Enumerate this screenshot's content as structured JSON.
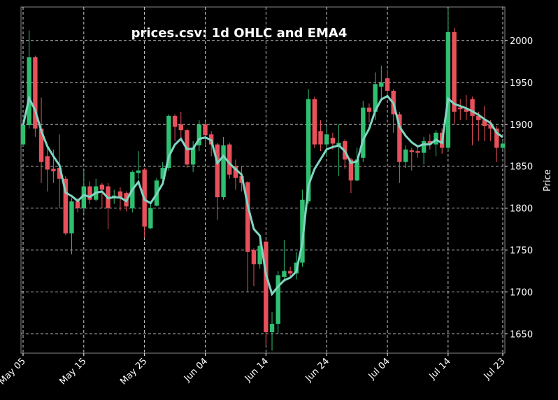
{
  "chart_data": {
    "type": "candlestick",
    "title": "prices.csv: 1d OHLC and EMA4",
    "ylabel": "Price",
    "categories": [
      "May 05",
      null,
      null,
      null,
      null,
      null,
      null,
      null,
      null,
      null,
      "May 15",
      null,
      null,
      null,
      null,
      null,
      null,
      null,
      null,
      null,
      "May 25",
      null,
      null,
      null,
      null,
      null,
      null,
      null,
      null,
      null,
      "Jun 04",
      null,
      null,
      null,
      null,
      null,
      null,
      null,
      null,
      null,
      "Jun 14",
      null,
      null,
      null,
      null,
      null,
      null,
      null,
      null,
      null,
      "Jun 24",
      null,
      null,
      null,
      null,
      null,
      null,
      null,
      null,
      null,
      "Jul 04",
      null,
      null,
      null,
      null,
      null,
      null,
      null,
      null,
      null,
      "Jul 14",
      null,
      null,
      null,
      null,
      null,
      null,
      null,
      null,
      "Jul 23"
    ],
    "open": [
      1876,
      1899,
      1980,
      1895,
      1862,
      1847,
      1848,
      1835,
      1770,
      1808,
      1800,
      1826,
      1810,
      1828,
      1826,
      1812,
      1820,
      1818,
      1800,
      1842,
      1846,
      1776,
      1803,
      1835,
      1848,
      1910,
      1900,
      1893,
      1852,
      1875,
      1900,
      1888,
      1876,
      1813,
      1876,
      1850,
      1838,
      1831,
      1750,
      1733,
      1760,
      1652,
      1662,
      1718,
      1725,
      1722,
      1735,
      1808,
      1930,
      1892,
      1876,
      1884,
      1875,
      1880,
      1858,
      1833,
      1860,
      1920,
      1915,
      1945,
      1955,
      1940,
      1912,
      1855,
      1869,
      1868,
      1866,
      1880,
      1876,
      1890,
      1872,
      2010,
      1920,
      1918,
      1930,
      1910,
      1905,
      1900,
      1895,
      1872
    ],
    "high": [
      1900,
      2012,
      1982,
      1932,
      1875,
      1870,
      1888,
      1838,
      1812,
      1812,
      1845,
      1832,
      1835,
      1830,
      1830,
      1822,
      1825,
      1820,
      1845,
      1868,
      1848,
      1805,
      1836,
      1855,
      1912,
      1912,
      1915,
      1895,
      1880,
      1905,
      1903,
      1892,
      1878,
      1885,
      1878,
      1858,
      1850,
      1832,
      1752,
      1762,
      1762,
      1676,
      1725,
      1762,
      1730,
      1748,
      1822,
      1942,
      1933,
      1905,
      1898,
      1890,
      1900,
      1882,
      1860,
      1872,
      1928,
      1925,
      1962,
      1970,
      1965,
      1942,
      1915,
      1875,
      1872,
      1875,
      1885,
      1888,
      1893,
      1895,
      2038,
      2015,
      1930,
      1935,
      1933,
      1915,
      1922,
      1905,
      1898,
      1880
    ],
    "low": [
      1874,
      1895,
      1885,
      1830,
      1820,
      1830,
      1800,
      1768,
      1745,
      1795,
      1795,
      1805,
      1808,
      1800,
      1775,
      1805,
      1797,
      1796,
      1795,
      1835,
      1765,
      1775,
      1802,
      1830,
      1845,
      1880,
      1880,
      1848,
      1843,
      1868,
      1875,
      1862,
      1786,
      1810,
      1835,
      1822,
      1820,
      1700,
      1707,
      1728,
      1636,
      1630,
      1650,
      1712,
      1718,
      1715,
      1730,
      1805,
      1872,
      1868,
      1862,
      1870,
      1838,
      1847,
      1818,
      1832,
      1855,
      1902,
      1905,
      1930,
      1935,
      1890,
      1830,
      1848,
      1845,
      1860,
      1852,
      1870,
      1862,
      1865,
      1868,
      1900,
      1905,
      1905,
      1875,
      1880,
      1880,
      1880,
      1855,
      1870
    ],
    "close": [
      1899,
      1980,
      1895,
      1855,
      1846,
      1844,
      1835,
      1770,
      1808,
      1800,
      1826,
      1810,
      1826,
      1822,
      1800,
      1815,
      1812,
      1802,
      1843,
      1845,
      1778,
      1800,
      1833,
      1848,
      1910,
      1897,
      1893,
      1852,
      1872,
      1900,
      1887,
      1876,
      1813,
      1875,
      1840,
      1836,
      1830,
      1748,
      1733,
      1755,
      1652,
      1662,
      1720,
      1725,
      1722,
      1735,
      1810,
      1930,
      1876,
      1876,
      1888,
      1877,
      1878,
      1858,
      1833,
      1858,
      1920,
      1915,
      1948,
      1950,
      1940,
      1912,
      1855,
      1870,
      1867,
      1866,
      1880,
      1876,
      1890,
      1872,
      2010,
      1915,
      1918,
      1915,
      1910,
      1905,
      1898,
      1895,
      1872,
      1877
    ],
    "ema": [
      1899,
      1931.4,
      1916.8,
      1892.1,
      1873.7,
      1861.8,
      1851.1,
      1818.7,
      1814.4,
      1808.6,
      1815.6,
      1813.4,
      1818.4,
      1819.8,
      1811.9,
      1813.1,
      1812.7,
      1808.4,
      1822.2,
      1831.3,
      1810.0,
      1806.0,
      1816.8,
      1829.3,
      1861.6,
      1875.8,
      1882.7,
      1870.4,
      1871.0,
      1882.6,
      1884.4,
      1881.0,
      1853.8,
      1862.3,
      1853.4,
      1846.4,
      1839.8,
      1803.1,
      1775.1,
      1767.1,
      1721.1,
      1697.5,
      1706.5,
      1713.9,
      1717.1,
      1724.3,
      1758.6,
      1827.2,
      1846.7,
      1858.4,
      1870.2,
      1872.9,
      1874.9,
      1868.1,
      1854.1,
      1855.7,
      1881.4,
      1894.8,
      1916.1,
      1929.7,
      1933.8,
      1925.1,
      1897.1,
      1886.3,
      1878.6,
      1873.6,
      1876.2,
      1876.1,
      1881.7,
      1877.8,
      1930.7,
      1924.4,
      1921.8,
      1919.1,
      1915.5,
      1911.3,
      1906.0,
      1901.6,
      1889.8,
      1884.7
    ],
    "up_color": "#2fbf71",
    "down_color": "#e8505b",
    "ema_color": "#7fd6c2",
    "ylim": [
      1627,
      2040
    ],
    "yticks": [
      1650,
      1700,
      1750,
      1800,
      1850,
      1900,
      1950,
      2000
    ],
    "grid": true
  }
}
